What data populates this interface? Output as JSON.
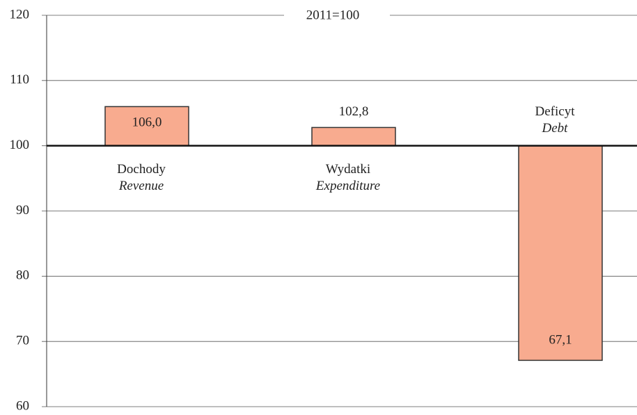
{
  "chart_data": {
    "type": "bar",
    "subtitle": "2011=100",
    "categories": [
      "Dochody",
      "Wydatki",
      "Deficyt"
    ],
    "categories_en": [
      "Revenue",
      "Expenditure",
      "Debt"
    ],
    "values": [
      106.0,
      102.8,
      67.1
    ],
    "value_labels": [
      "106,0",
      "102,8",
      "67,1"
    ],
    "color": "#f8ab8f",
    "bar_base": 100,
    "ylim": [
      60,
      120
    ],
    "yticks": [
      60,
      70,
      80,
      90,
      100,
      110,
      120
    ],
    "grid": true
  }
}
